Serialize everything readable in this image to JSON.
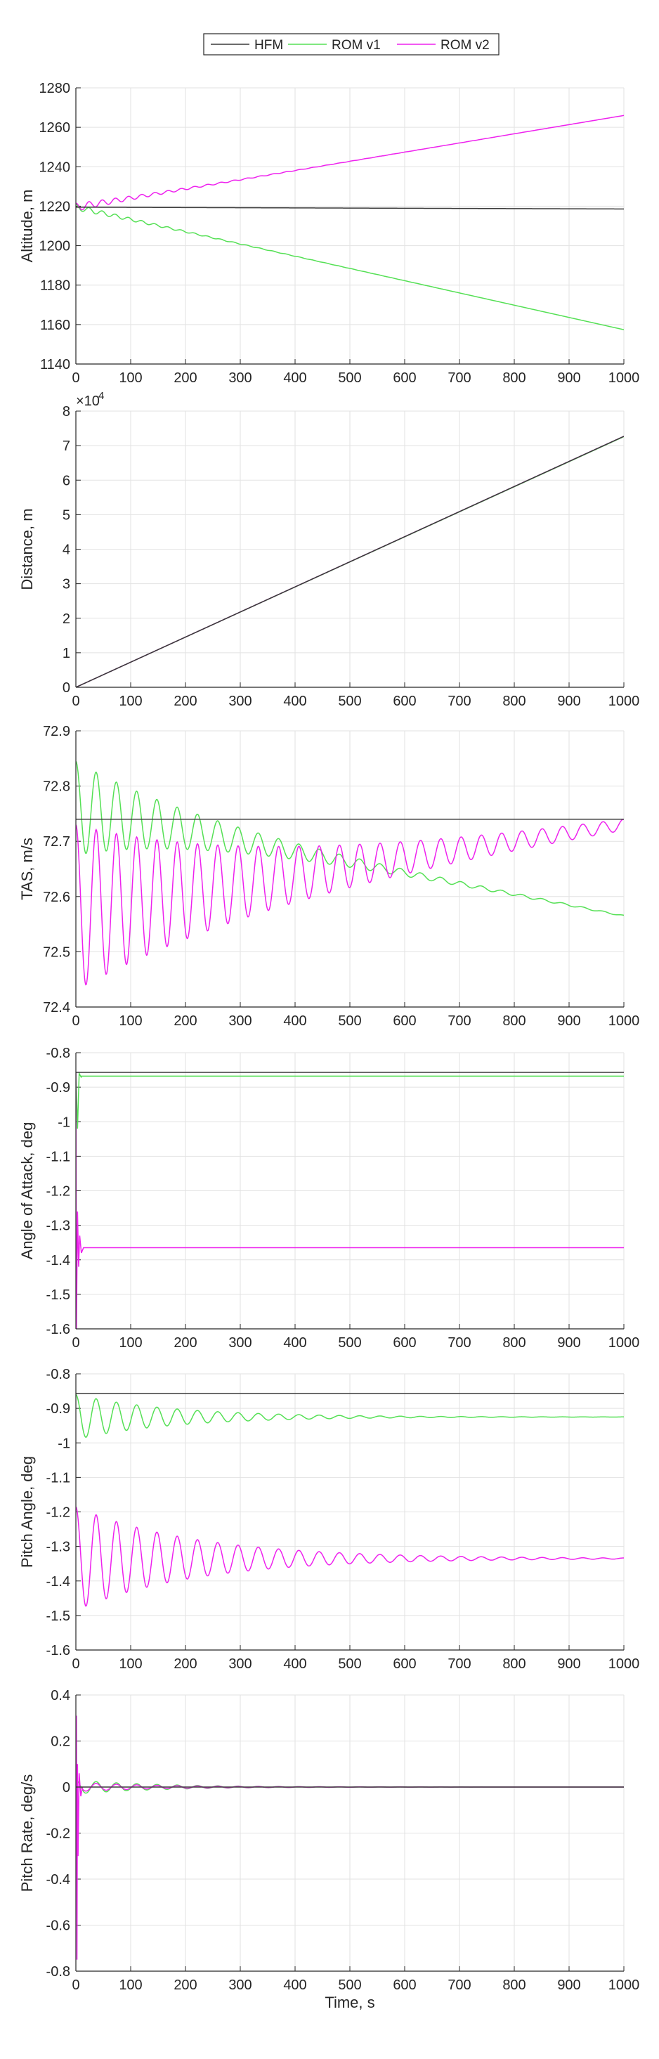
{
  "colors": {
    "HFM": "#3a3a3a",
    "ROM v1": "#55e055",
    "ROM v2": "#ee22ee",
    "grid": "#e2e2e2",
    "axis": "#262626"
  },
  "legend": {
    "placement": "top-center",
    "entries": [
      "HFM",
      "ROM v1",
      "ROM v2"
    ]
  },
  "xlabel": "Time, s",
  "chart_data": [
    {
      "type": "line",
      "ylabel": "Altitude, m",
      "xlim": [
        0,
        1000
      ],
      "ylim": [
        1140,
        1280
      ],
      "xticks": [
        "0",
        "100",
        "200",
        "300",
        "400",
        "500",
        "600",
        "700",
        "800",
        "900",
        "1000"
      ],
      "yticks": [
        "1140",
        "1160",
        "1180",
        "1200",
        "1220",
        "1240",
        "1260",
        "1280"
      ],
      "grid": true,
      "series": [
        {
          "name": "HFM",
          "x": [
            0,
            1000
          ],
          "y": [
            1219.5,
            1218.6
          ]
        },
        {
          "name": "ROM v1",
          "x": [
            0,
            1000
          ],
          "y": [
            1219.5,
            1157.4
          ],
          "osc": {
            "amp": 1.5,
            "period": 24,
            "decay": 150
          }
        },
        {
          "name": "ROM v2",
          "x": [
            0,
            1000
          ],
          "y": [
            1219.5,
            1266
          ],
          "osc": {
            "amp": 2.0,
            "period": 24,
            "decay": 150
          }
        }
      ]
    },
    {
      "type": "line",
      "ylabel": "Distance, m",
      "exponent": "×10",
      "exponent_power": "4",
      "xlim": [
        0,
        1000
      ],
      "ylim": [
        0,
        8
      ],
      "xticks": [
        "0",
        "100",
        "200",
        "300",
        "400",
        "500",
        "600",
        "700",
        "800",
        "900",
        "1000"
      ],
      "yticks": [
        "0",
        "1",
        "2",
        "3",
        "4",
        "5",
        "6",
        "7",
        "8"
      ],
      "grid": true,
      "series": [
        {
          "name": "HFM",
          "x": [
            0,
            1000
          ],
          "y": [
            0,
            7.27
          ]
        },
        {
          "name": "ROM v1",
          "x": [
            0,
            1000
          ],
          "y": [
            0,
            7.26
          ]
        },
        {
          "name": "ROM v2",
          "x": [
            0,
            1000
          ],
          "y": [
            0,
            7.27
          ]
        }
      ]
    },
    {
      "type": "line",
      "ylabel": "TAS, m/s",
      "xlim": [
        0,
        1000
      ],
      "ylim": [
        72.4,
        72.9
      ],
      "xticks": [
        "0",
        "100",
        "200",
        "300",
        "400",
        "500",
        "600",
        "700",
        "800",
        "900",
        "1000"
      ],
      "yticks": [
        "72.4",
        "72.5",
        "72.6",
        "72.7",
        "72.8",
        "72.9"
      ],
      "grid": true,
      "series": [
        {
          "name": "HFM",
          "x": [
            0,
            1000
          ],
          "y": [
            72.74,
            72.74
          ]
        },
        {
          "name": "ROM v1",
          "x": [
            0,
            1000
          ],
          "y": [
            72.76,
            72.565
          ],
          "osc": {
            "amp": 0.085,
            "period": 37,
            "decay": 230
          }
        },
        {
          "name": "ROM v2",
          "x": [
            0,
            1000
          ],
          "y": [
            72.58,
            72.73
          ],
          "osc": {
            "amp": 0.15,
            "period": 37,
            "decay": 370
          }
        }
      ]
    },
    {
      "type": "line",
      "ylabel": "Angle of Attack, deg",
      "xlim": [
        0,
        1000
      ],
      "ylim": [
        -1.6,
        -0.8
      ],
      "xticks": [
        "0",
        "100",
        "200",
        "300",
        "400",
        "500",
        "600",
        "700",
        "800",
        "900",
        "1000"
      ],
      "yticks": [
        "-1.6",
        "-1.5",
        "-1.4",
        "-1.3",
        "-1.2",
        "-1.1",
        "-1",
        "-0.9",
        "-0.8"
      ],
      "grid": true,
      "series": [
        {
          "name": "HFM",
          "x": [
            0,
            1000
          ],
          "y": [
            -0.857,
            -0.857
          ]
        },
        {
          "name": "ROM v1",
          "x": [
            0,
            1000
          ],
          "y": [
            -0.868,
            -0.868
          ],
          "spike": [
            [
              0,
              -0.857
            ],
            [
              3,
              -1.02
            ],
            [
              6,
              -0.86
            ],
            [
              10,
              -0.872
            ]
          ]
        },
        {
          "name": "ROM v2",
          "x": [
            0,
            1000
          ],
          "y": [
            -1.365,
            -1.365
          ],
          "spike": [
            [
              0,
              -0.857
            ],
            [
              1,
              -1.6
            ],
            [
              3,
              -1.26
            ],
            [
              5,
              -1.42
            ],
            [
              7,
              -1.33
            ],
            [
              10,
              -1.38
            ],
            [
              14,
              -1.365
            ]
          ]
        }
      ]
    },
    {
      "type": "line",
      "ylabel": "Pitch Angle, deg",
      "xlim": [
        0,
        1000
      ],
      "ylim": [
        -1.6,
        -0.8
      ],
      "xticks": [
        "0",
        "100",
        "200",
        "300",
        "400",
        "500",
        "600",
        "700",
        "800",
        "900",
        "1000"
      ],
      "yticks": [
        "-1.6",
        "-1.5",
        "-1.4",
        "-1.3",
        "-1.2",
        "-1.1",
        "-1",
        "-0.9",
        "-0.8"
      ],
      "grid": true,
      "series": [
        {
          "name": "HFM",
          "x": [
            0,
            1000
          ],
          "y": [
            -0.857,
            -0.857
          ]
        },
        {
          "name": "ROM v1",
          "x": [
            0,
            1000
          ],
          "y": [
            -0.925,
            -0.925
          ],
          "osc": {
            "amp": 0.065,
            "period": 37,
            "decay": 180
          }
        },
        {
          "name": "ROM v2",
          "x": [
            0,
            1000
          ],
          "y": [
            -1.335,
            -1.335
          ],
          "osc": {
            "amp": 0.15,
            "period": 37,
            "decay": 220
          }
        }
      ]
    },
    {
      "type": "line",
      "ylabel": "Pitch Rate, deg/s",
      "xlim": [
        0,
        1000
      ],
      "ylim": [
        -0.8,
        0.4
      ],
      "xticks": [
        "0",
        "100",
        "200",
        "300",
        "400",
        "500",
        "600",
        "700",
        "800",
        "900",
        "1000"
      ],
      "yticks": [
        "-0.8",
        "-0.6",
        "-0.4",
        "-0.2",
        "0",
        "0.2",
        "0.4"
      ],
      "grid": true,
      "series": [
        {
          "name": "HFM",
          "x": [
            0,
            1000
          ],
          "y": [
            0,
            0
          ]
        },
        {
          "name": "ROM v1",
          "x": [
            0,
            1000
          ],
          "y": [
            0,
            0
          ],
          "osc": {
            "amp": 0.03,
            "period": 37,
            "decay": 150
          }
        },
        {
          "name": "ROM v2",
          "x": [
            0,
            1000
          ],
          "y": [
            0,
            0
          ],
          "osc": {
            "amp": 0.02,
            "period": 37,
            "decay": 150
          },
          "spike": [
            [
              0,
              0
            ],
            [
              1,
              0.31
            ],
            [
              2,
              -0.75
            ],
            [
              3,
              0.1
            ],
            [
              4,
              -0.3
            ],
            [
              6,
              0.06
            ],
            [
              9,
              -0.04
            ],
            [
              12,
              0.0
            ]
          ]
        }
      ]
    }
  ]
}
